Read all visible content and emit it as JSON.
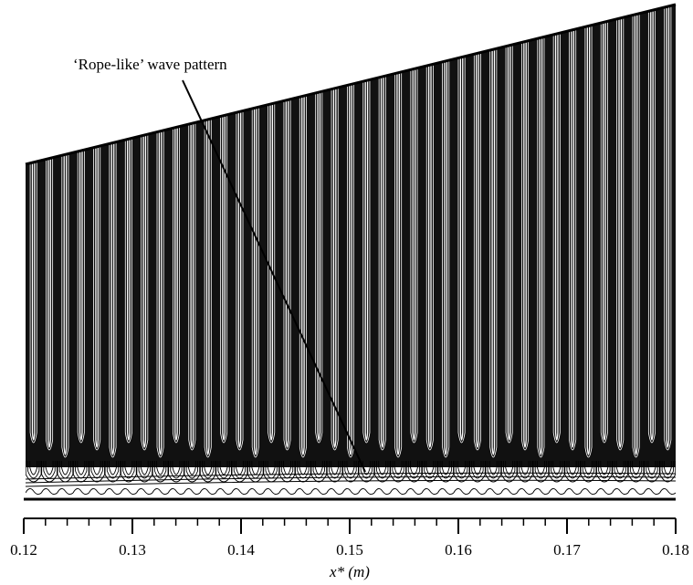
{
  "chart_data": {
    "type": "contour",
    "annotation": "‘Rope-like’ wave pattern",
    "xlabel": "x* (m)",
    "xlim": [
      0.12,
      0.18
    ],
    "xticks": [
      0.12,
      0.13,
      0.14,
      0.15,
      0.16,
      0.17,
      0.18
    ]
  }
}
